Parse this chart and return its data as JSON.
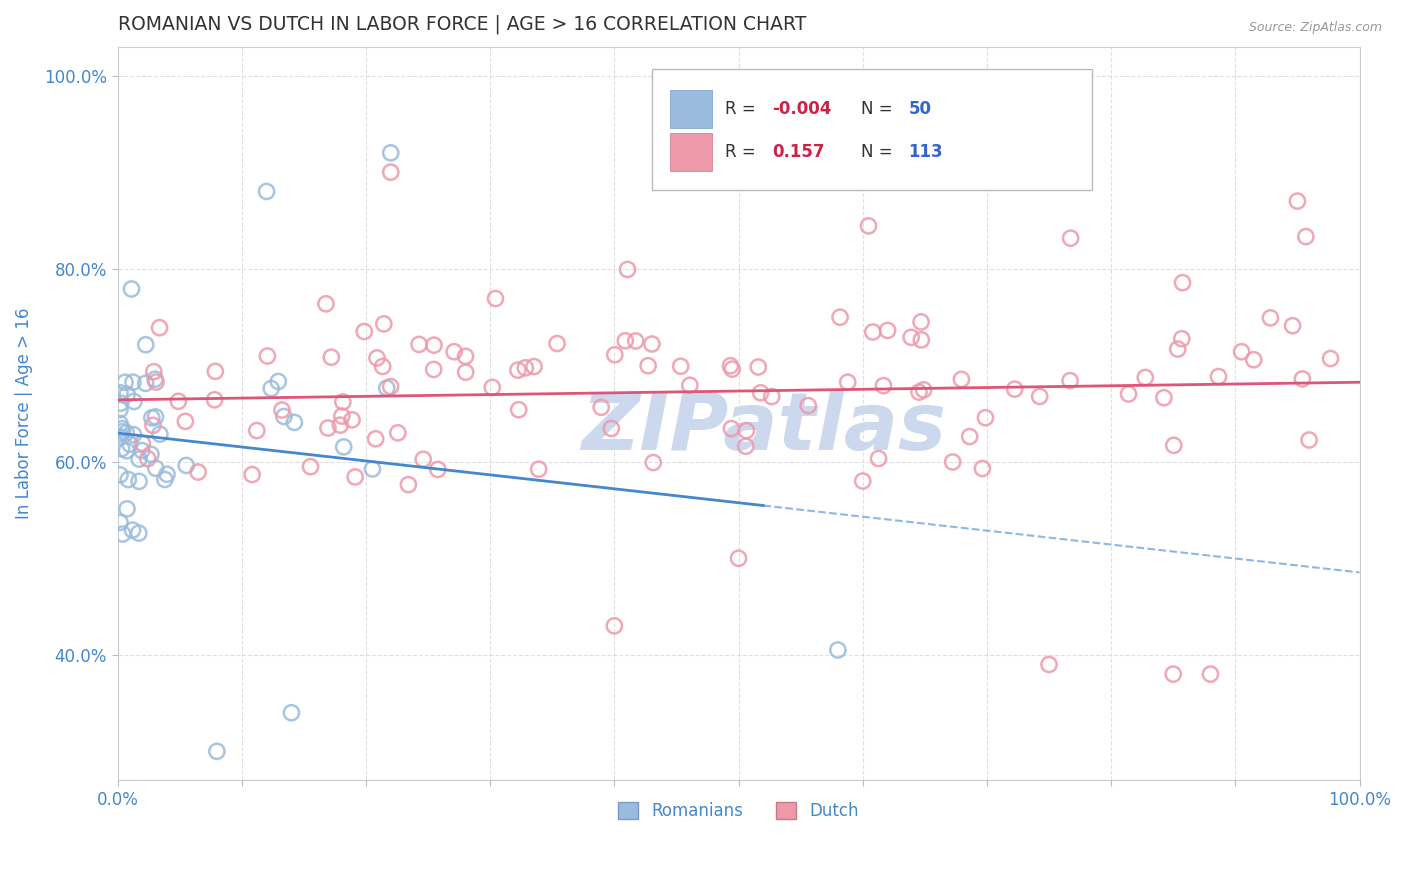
{
  "title": "ROMANIAN VS DUTCH IN LABOR FORCE | AGE > 16 CORRELATION CHART",
  "source_text": "Source: ZipAtlas.com",
  "ylabel": "In Labor Force | Age > 16",
  "xlim": [
    0.0,
    1.0
  ],
  "ylim": [
    0.27,
    1.03
  ],
  "romanian_R": -0.004,
  "romanian_N": 50,
  "dutch_R": 0.157,
  "dutch_N": 113,
  "romanian_color": "#99bbdd",
  "dutch_color": "#ee99aa",
  "romanian_line_color": "#4488cc",
  "dutch_line_color": "#dd5577",
  "background_color": "#ffffff",
  "grid_color": "#cccccc",
  "title_color": "#333333",
  "axis_tick_color": "#4488cc",
  "watermark_color": "#ccd8ee",
  "watermark_text": "ZIPatlas",
  "legend_box_color": "#4488cc",
  "legend_R_value_color_blue": "#dd3355",
  "legend_R_value_color_pink": "#3366cc",
  "legend_N_color": "#3366cc"
}
